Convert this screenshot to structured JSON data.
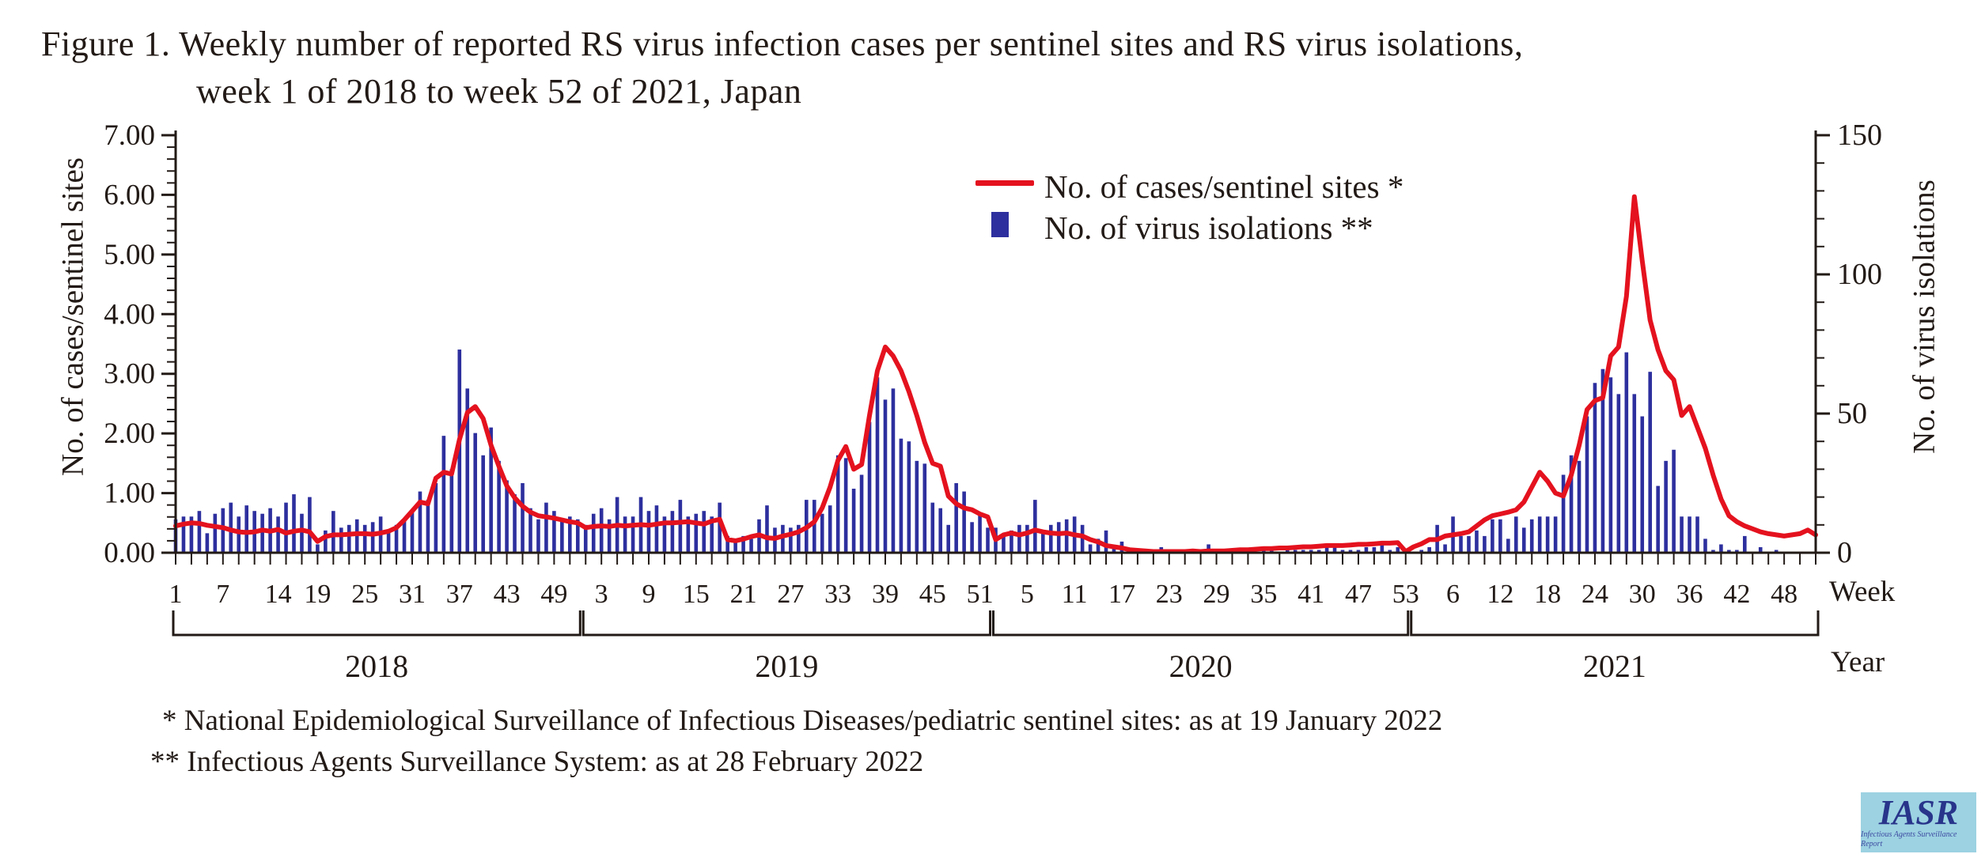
{
  "title": {
    "line1": "Figure 1. Weekly number of reported RS virus infection cases per sentinel sites and RS virus isolations,",
    "line2": "week 1 of 2018 to week 52 of 2021, Japan"
  },
  "legend": {
    "cases_label": "No. of cases/sentinel sites *",
    "isolations_label": "No. of virus isolations **"
  },
  "left_axis": {
    "title": "No. of cases/sentinel sites",
    "tick_labels": [
      "0.00",
      "1.00",
      "2.00",
      "3.00",
      "4.00",
      "5.00",
      "6.00",
      "7.00"
    ],
    "min": 0,
    "max": 7,
    "minor_step": 0.2
  },
  "right_axis": {
    "title": "No. of virus isolations",
    "tick_labels": [
      "0",
      "50",
      "100",
      "150"
    ],
    "min": 0,
    "max": 150,
    "minor_step": 10
  },
  "x_axis": {
    "week_label": "Week",
    "year_label": "Year"
  },
  "footnotes": {
    "note1": "* National Epidemiological Surveillance of Infectious Diseases/pediatric sentinel sites: as at 19 January 2022",
    "note2": "** Infectious Agents Surveillance System: as at 28 February 2022"
  },
  "logo": {
    "text": "IASR",
    "subtext": "Infectious Agents Surveillance Report"
  },
  "colors": {
    "cases_line": "#e4121e",
    "isolation_bar": "#2d2f9e",
    "axis": "#221a16",
    "logo_bg": "#9cd2e2",
    "logo_text": "#28348a"
  },
  "chart_data": {
    "type": "line+bar",
    "title": "Weekly RS virus infection cases per sentinel sites and RS virus isolations, Japan 2018-2021",
    "x_unit": "week",
    "left_ylim": [
      0,
      7
    ],
    "right_ylim": [
      0,
      150
    ],
    "years": [
      {
        "label": "2018",
        "weeks": 52,
        "tick_start": 1,
        "tick_labels": [
          1,
          7,
          14,
          19,
          25,
          31,
          37,
          43,
          49
        ]
      },
      {
        "label": "2019",
        "weeks": 52,
        "tick_start": 1,
        "tick_labels": [
          3,
          9,
          15,
          21,
          27,
          33,
          39,
          45,
          51
        ]
      },
      {
        "label": "2020",
        "weeks": 53,
        "tick_start": 1,
        "tick_labels": [
          5,
          11,
          17,
          23,
          29,
          35,
          41,
          47,
          53
        ]
      },
      {
        "label": "2021",
        "weeks": 52,
        "tick_start": 2,
        "tick_labels": [
          6,
          12,
          18,
          24,
          30,
          36,
          42,
          48
        ]
      }
    ],
    "series": [
      {
        "name": "No. of cases/sentinel sites",
        "type": "line",
        "axis": "left",
        "values": [
          0.45,
          0.48,
          0.5,
          0.49,
          0.46,
          0.44,
          0.42,
          0.38,
          0.35,
          0.34,
          0.35,
          0.38,
          0.36,
          0.39,
          0.33,
          0.36,
          0.38,
          0.35,
          0.19,
          0.27,
          0.3,
          0.3,
          0.31,
          0.32,
          0.32,
          0.31,
          0.33,
          0.36,
          0.42,
          0.55,
          0.7,
          0.85,
          0.82,
          1.25,
          1.35,
          1.32,
          1.9,
          2.35,
          2.45,
          2.25,
          1.8,
          1.45,
          1.12,
          0.92,
          0.78,
          0.68,
          0.62,
          0.6,
          0.58,
          0.55,
          0.52,
          0.5,
          0.42,
          0.44,
          0.45,
          0.44,
          0.46,
          0.45,
          0.46,
          0.47,
          0.46,
          0.48,
          0.5,
          0.5,
          0.51,
          0.52,
          0.5,
          0.48,
          0.53,
          0.56,
          0.22,
          0.2,
          0.23,
          0.27,
          0.3,
          0.25,
          0.24,
          0.28,
          0.31,
          0.35,
          0.42,
          0.52,
          0.75,
          1.1,
          1.55,
          1.78,
          1.4,
          1.48,
          2.3,
          3.05,
          3.45,
          3.3,
          3.05,
          2.7,
          2.3,
          1.85,
          1.5,
          1.45,
          0.95,
          0.82,
          0.75,
          0.72,
          0.65,
          0.6,
          0.22,
          0.3,
          0.33,
          0.3,
          0.33,
          0.38,
          0.35,
          0.33,
          0.32,
          0.33,
          0.3,
          0.28,
          0.22,
          0.18,
          0.12,
          0.1,
          0.08,
          0.05,
          0.04,
          0.03,
          0.02,
          0.02,
          0.02,
          0.02,
          0.02,
          0.03,
          0.02,
          0.03,
          0.03,
          0.03,
          0.04,
          0.05,
          0.05,
          0.06,
          0.07,
          0.07,
          0.08,
          0.08,
          0.09,
          0.1,
          0.1,
          0.11,
          0.12,
          0.12,
          0.12,
          0.13,
          0.14,
          0.14,
          0.15,
          0.16,
          0.16,
          0.17,
          0.02,
          0.1,
          0.15,
          0.22,
          0.22,
          0.28,
          0.3,
          0.32,
          0.35,
          0.45,
          0.55,
          0.62,
          0.65,
          0.68,
          0.72,
          0.85,
          1.1,
          1.35,
          1.2,
          1.0,
          0.95,
          1.3,
          1.8,
          2.4,
          2.55,
          2.6,
          3.3,
          3.45,
          4.3,
          5.97,
          4.9,
          3.9,
          3.4,
          3.05,
          2.9,
          2.3,
          2.45,
          2.1,
          1.75,
          1.3,
          0.9,
          0.62,
          0.52,
          0.45,
          0.4,
          0.35,
          0.32,
          0.3,
          0.28,
          0.3,
          0.32,
          0.38,
          0.3
        ]
      },
      {
        "name": "No. of virus isolations",
        "type": "bar",
        "axis": "right",
        "values": [
          12,
          13,
          13,
          15,
          7,
          14,
          16,
          18,
          13,
          17,
          15,
          14,
          16,
          13,
          18,
          21,
          14,
          20,
          3,
          8,
          15,
          9,
          10,
          12,
          10,
          11,
          13,
          8,
          10,
          12,
          15,
          22,
          19,
          25,
          42,
          30,
          73,
          59,
          43,
          35,
          45,
          33,
          26,
          21,
          25,
          16,
          12,
          18,
          15,
          12,
          13,
          12,
          10,
          14,
          16,
          12,
          20,
          13,
          13,
          20,
          15,
          17,
          13,
          15,
          19,
          13,
          14,
          15,
          13,
          18,
          6,
          5,
          6,
          5,
          12,
          17,
          9,
          10,
          9,
          10,
          19,
          19,
          14,
          17,
          35,
          34,
          23,
          28,
          47,
          63,
          55,
          59,
          41,
          40,
          33,
          32,
          18,
          16,
          10,
          25,
          22,
          11,
          14,
          9,
          9,
          7,
          8,
          10,
          10,
          19,
          7,
          10,
          11,
          12,
          13,
          10,
          3,
          5,
          8,
          2,
          4,
          1,
          0,
          1,
          0,
          2,
          0,
          0,
          1,
          0,
          1,
          3,
          1,
          0,
          1,
          0,
          1,
          0,
          1,
          1,
          0,
          1,
          1,
          1,
          1,
          1,
          2,
          2,
          1,
          1,
          1,
          2,
          2,
          3,
          1,
          2,
          1,
          0,
          1,
          2,
          10,
          3,
          13,
          6,
          6,
          8,
          6,
          12,
          12,
          5,
          13,
          9,
          12,
          13,
          13,
          13,
          28,
          35,
          33,
          49,
          61,
          66,
          63,
          57,
          72,
          57,
          49,
          65,
          24,
          33,
          37,
          13,
          13,
          13,
          5,
          1,
          3,
          1,
          1,
          6,
          0,
          2,
          0,
          1,
          0,
          0,
          0,
          0,
          0
        ]
      }
    ]
  }
}
